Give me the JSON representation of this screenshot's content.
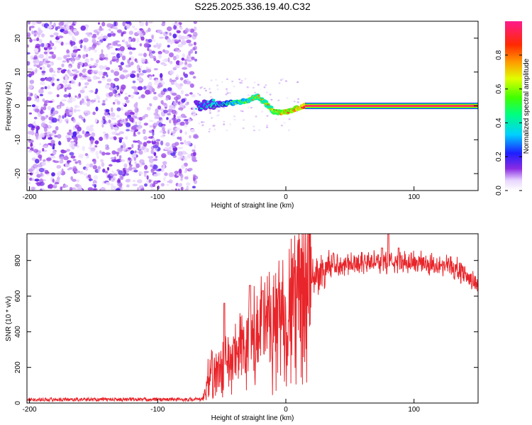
{
  "title": "S225.2025.336.19.40.C32",
  "chart_data": [
    {
      "type": "heatmap",
      "xlabel": "Height of straight line (km)",
      "ylabel": "Frequency (Hz)",
      "xlim": [
        -202,
        150
      ],
      "ylim": [
        -25,
        25
      ],
      "xticks": [
        -200,
        -100,
        0,
        100
      ],
      "yticks": [
        -20,
        -10,
        0,
        10,
        20
      ],
      "colorbar": {
        "label": "Normalized spectral amplitude",
        "range": [
          0,
          1
        ],
        "ticks": [
          0.0,
          0.2,
          0.4,
          0.6,
          0.8
        ]
      },
      "noise_region_x": [
        -202,
        -70
      ],
      "signal_track": [
        {
          "x": -70,
          "freq": 0.0,
          "amp": 0.25
        },
        {
          "x": -60,
          "freq": 0.5,
          "amp": 0.45
        },
        {
          "x": -50,
          "freq": 0.5,
          "amp": 0.5
        },
        {
          "x": -40,
          "freq": 1.0,
          "amp": 0.6
        },
        {
          "x": -30,
          "freq": 1.5,
          "amp": 0.65
        },
        {
          "x": -22,
          "freq": 3.0,
          "amp": 0.7
        },
        {
          "x": -15,
          "freq": 0.5,
          "amp": 0.7
        },
        {
          "x": -10,
          "freq": -1.5,
          "amp": 0.75
        },
        {
          "x": -3,
          "freq": -2.0,
          "amp": 0.85
        },
        {
          "x": 3,
          "freq": -1.5,
          "amp": 0.85
        },
        {
          "x": 10,
          "freq": -0.5,
          "amp": 0.9
        },
        {
          "x": 15,
          "freq": 0.0,
          "amp": 1.0
        },
        {
          "x": 150,
          "freq": 0.0,
          "amp": 1.0
        }
      ]
    },
    {
      "type": "line",
      "xlabel": "Height of straight line (km)",
      "ylabel": "SNR (10 * v/v)",
      "xlim": [
        -202,
        150
      ],
      "ylim": [
        0,
        950
      ],
      "xticks": [
        -200,
        -100,
        0,
        100
      ],
      "yticks": [
        0,
        200,
        400,
        600,
        800
      ],
      "color": "#e8252a",
      "envelope": [
        {
          "x": -202,
          "y": 20
        },
        {
          "x": -65,
          "y": 20
        },
        {
          "x": -60,
          "y": 150
        },
        {
          "x": -50,
          "y": 200
        },
        {
          "x": -40,
          "y": 250
        },
        {
          "x": -30,
          "y": 320
        },
        {
          "x": -20,
          "y": 380
        },
        {
          "x": -10,
          "y": 430
        },
        {
          "x": 0,
          "y": 500
        },
        {
          "x": 10,
          "y": 600
        },
        {
          "x": 20,
          "y": 690
        },
        {
          "x": 30,
          "y": 750
        },
        {
          "x": 40,
          "y": 780
        },
        {
          "x": 60,
          "y": 790
        },
        {
          "x": 80,
          "y": 790
        },
        {
          "x": 100,
          "y": 790
        },
        {
          "x": 120,
          "y": 780
        },
        {
          "x": 135,
          "y": 750
        },
        {
          "x": 150,
          "y": 660
        }
      ],
      "spikes": [
        {
          "x": -48,
          "y": 560
        },
        {
          "x": -28,
          "y": 660
        },
        {
          "x": -18,
          "y": 630
        },
        {
          "x": 80,
          "y": 950
        },
        {
          "x": 75,
          "y": 870
        },
        {
          "x": 88,
          "y": 870
        }
      ]
    }
  ]
}
